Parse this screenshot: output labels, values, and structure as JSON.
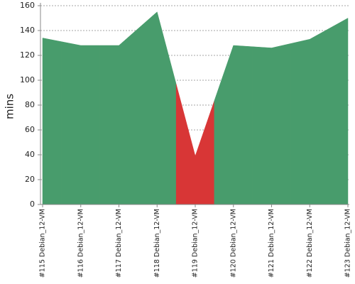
{
  "chart_data": {
    "type": "area",
    "y_label": "mins",
    "categories": [
      "#115 Debian_12-VM",
      "#116 Debian_12-VM",
      "#117 Debian_12-VM",
      "#118 Debian_12-VM",
      "#119 Debian_12-VM",
      "#120 Debian_12-VM",
      "#121 Debian_12-VM",
      "#122 Debian_12-VM",
      "#123 Debian_12-VM"
    ],
    "values": [
      134,
      128,
      128,
      155,
      39,
      128,
      126,
      133,
      150
    ],
    "colors": [
      "#489c6c",
      "#489c6c",
      "#489c6c",
      "#489c6c",
      "#d83636",
      "#489c6c",
      "#489c6c",
      "#489c6c",
      "#489c6c"
    ],
    "ylim": [
      0,
      160
    ],
    "yticks": [
      0,
      20,
      40,
      60,
      80,
      100,
      120,
      140,
      160
    ],
    "grid": true
  }
}
